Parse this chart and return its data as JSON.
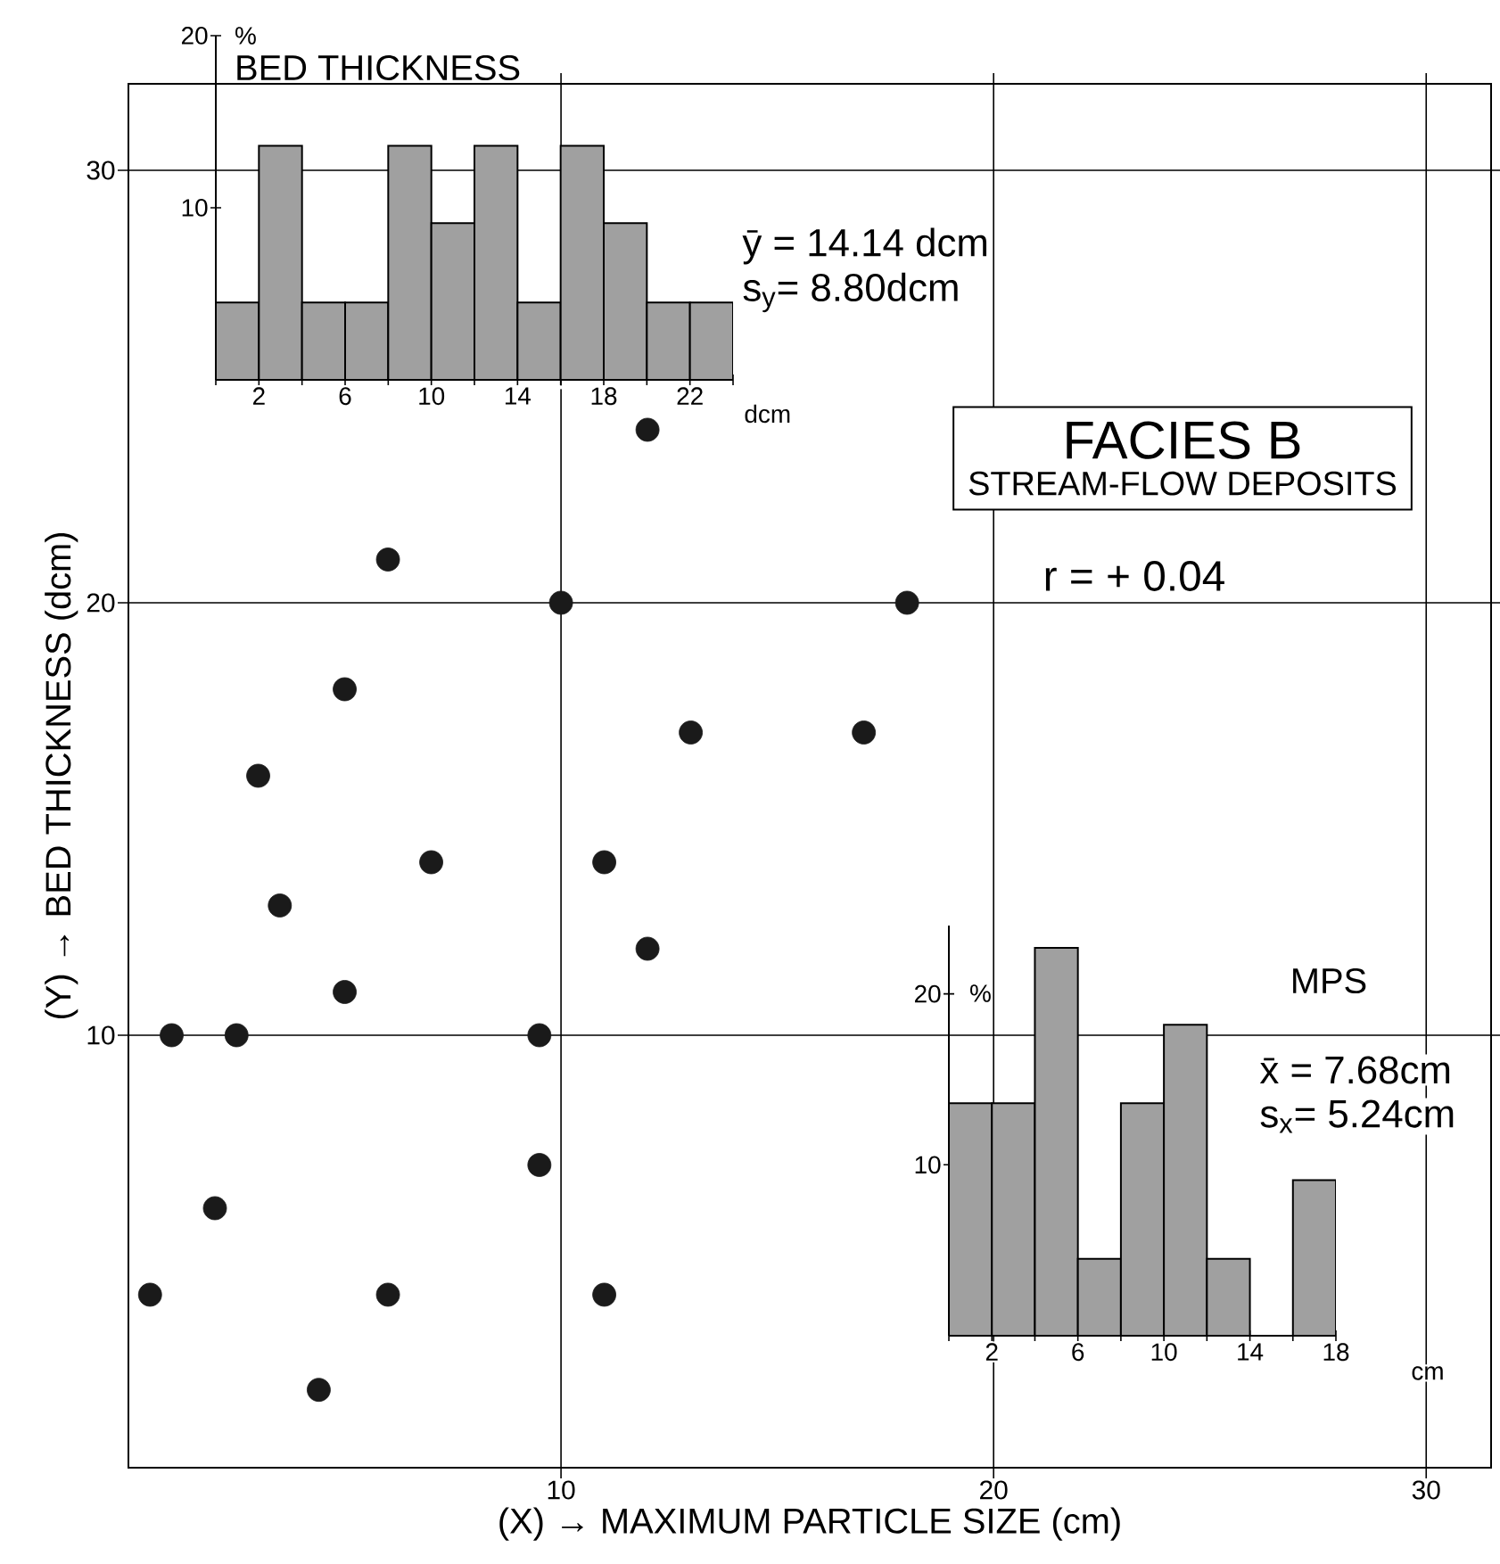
{
  "chart_data": [
    {
      "type": "scatter",
      "title": "FACIES B",
      "subtitle": "STREAM-FLOW DEPOSITS",
      "xlabel": "(X) → MAXIMUM PARTICLE SIZE (cm)",
      "ylabel": "(Y) → BED THICKNESS (dcm)",
      "annotations": [
        "r = + 0.04"
      ],
      "x": [
        6,
        10,
        18,
        5,
        3,
        13,
        17,
        7,
        11,
        3.5,
        12,
        5,
        1,
        2.5,
        9.5,
        9.5,
        2,
        0.5,
        6,
        11,
        4.4,
        12
      ],
      "values": [
        21,
        20,
        20,
        18,
        16,
        17,
        17,
        14,
        14,
        13,
        12,
        11,
        10,
        10,
        10,
        7,
        6,
        4,
        4,
        4,
        1.8,
        24
      ],
      "color": "#1a1a1a",
      "marker": "circle",
      "grid": true,
      "xlim": [
        0,
        31.5
      ],
      "ylim": [
        0,
        32
      ],
      "xticks": [
        10,
        20,
        30
      ],
      "yticks": [
        10,
        20,
        30
      ]
    },
    {
      "type": "histogram",
      "title": "BED THICKNESS",
      "xlabel": "dcm",
      "ylabel": "%",
      "annotations": [
        "ȳ = 14.14 dcm",
        "s$_{y}$= 8.80dcm"
      ],
      "bins": [
        0,
        2,
        4,
        6,
        8,
        10,
        12,
        14,
        16,
        18,
        20,
        22,
        24
      ],
      "values": [
        4.5,
        13.6,
        4.5,
        4.5,
        13.6,
        9.1,
        13.6,
        4.5,
        13.6,
        9.1,
        4.5,
        4.5
      ],
      "color": "#a0a0a0",
      "xlim": [
        0,
        24
      ],
      "ylim": [
        0,
        20
      ],
      "xticks": [
        {
          "value": 0,
          "label": null
        },
        2,
        {
          "value": 4,
          "label": null
        },
        6,
        {
          "value": 8,
          "label": null
        },
        10,
        {
          "value": 12,
          "label": null
        },
        14,
        {
          "value": 16,
          "label": null
        },
        18,
        {
          "value": 20,
          "label": null
        },
        22,
        {
          "value": 24,
          "label": null
        }
      ],
      "yticks": [
        10,
        20
      ]
    },
    {
      "type": "histogram",
      "title": "MPS",
      "xlabel": "cm",
      "ylabel": "%",
      "annotations": [
        "x̄ = 7.68cm",
        "s$_{x}$= 5.24cm"
      ],
      "bins": [
        0,
        2,
        4,
        6,
        8,
        10,
        12,
        14,
        16,
        18
      ],
      "values": [
        13.6,
        13.6,
        22.7,
        4.5,
        13.6,
        18.2,
        4.5,
        0,
        9.1
      ],
      "color": "#a0a0a0",
      "xlim": [
        0,
        18
      ],
      "ylim": [
        0,
        24
      ],
      "xticks": [
        {
          "value": 0,
          "label": null
        },
        2,
        {
          "value": 4,
          "label": null
        },
        6,
        {
          "value": 8,
          "label": null
        },
        10,
        {
          "value": 12,
          "label": null
        },
        14,
        {
          "value": 16,
          "label": null
        },
        18
      ],
      "yticks": [
        10,
        20
      ]
    }
  ]
}
